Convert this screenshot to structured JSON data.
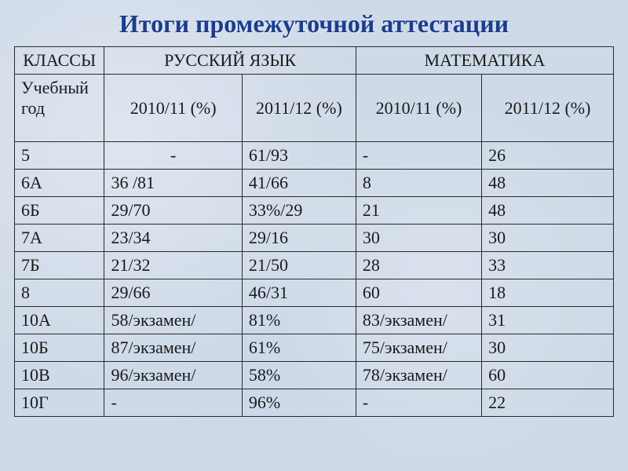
{
  "title": "Итоги промежуточной аттестации",
  "headers": {
    "classes": "КЛАССЫ",
    "russian": "РУССКИЙ ЯЗЫК",
    "math": "МАТЕМАТИКА",
    "year_label": "Учебный год",
    "rus_2010": "2010/11 (%)",
    "rus_2011": "2011/12 (%)",
    "math_2010": "2010/11 (%)",
    "math_2011": "2011/12 (%)"
  },
  "rows": [
    {
      "cls": "5",
      "r10": "-",
      "r11": "61/93",
      "m10": "-",
      "m11": "26"
    },
    {
      "cls": "6А",
      "r10": "36 /81",
      "r11": "41/66",
      "m10": "8",
      "m11": "48"
    },
    {
      "cls": "6Б",
      "r10": "29/70",
      "r11": "33%/29",
      "m10": "21",
      "m11": "48"
    },
    {
      "cls": "7А",
      "r10": "23/34",
      "r11": "29/16",
      "m10": "30",
      "m11": "30"
    },
    {
      "cls": "7Б",
      "r10": "21/32",
      "r11": "21/50",
      "m10": "28",
      "m11": "33"
    },
    {
      "cls": "8",
      "r10": "29/66",
      "r11": "46/31",
      "m10": "60",
      "m11": "18"
    },
    {
      "cls": "10А",
      "r10": "58/экзамен/",
      "r11": "81%",
      "m10": "83/экзамен/",
      "m11": "31"
    },
    {
      "cls": "10Б",
      "r10": "87/экзамен/",
      "r11": "61%",
      "m10": "75/экзамен/",
      "m11": "30"
    },
    {
      "cls": "10В",
      "r10": "96/экзамен/",
      "r11": "58%",
      "m10": "78/экзамен/",
      "m11": "60"
    },
    {
      "cls": "10Г",
      "r10": "-",
      "r11": "96%",
      "m10": "-",
      "m11": "22"
    }
  ],
  "styles": {
    "title_color": "#1a3d8f",
    "border_color": "#2a2a2a",
    "text_color": "#1a1a1a",
    "background": "#cfdae8",
    "title_fontsize": 32,
    "cell_fontsize": 22
  }
}
